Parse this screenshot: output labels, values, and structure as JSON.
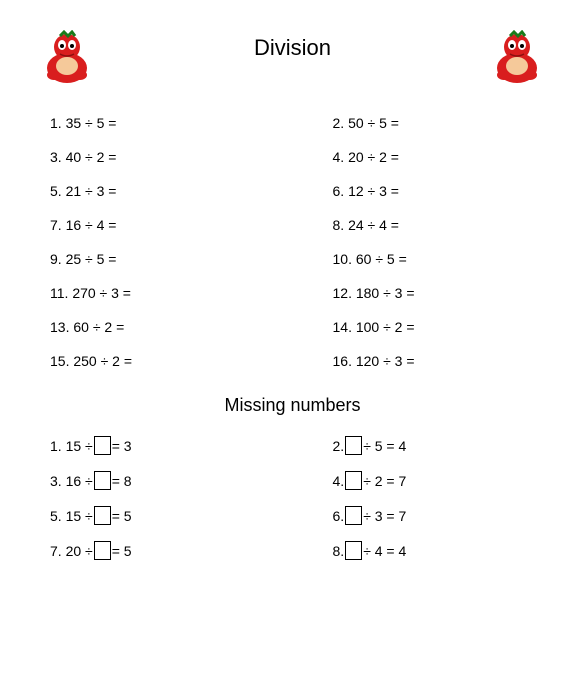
{
  "title": "Division",
  "subtitle": "Missing numbers",
  "division_sign": "÷",
  "equals": "=",
  "colors": {
    "background": "#ffffff",
    "text": "#000000",
    "mascot_body": "#d91e1e",
    "mascot_dark": "#8b1010",
    "mascot_accent": "#1a7a1a"
  },
  "typography": {
    "title_fontsize": 22,
    "subtitle_fontsize": 18,
    "body_fontsize": 14,
    "font_family": "Arial"
  },
  "problems": [
    {
      "n": "1",
      "a": "35",
      "b": "5"
    },
    {
      "n": "2",
      "a": "50",
      "b": "5"
    },
    {
      "n": "3",
      "a": "40",
      "b": "2"
    },
    {
      "n": "4",
      "a": "20",
      "b": "2"
    },
    {
      "n": "5",
      "a": "21",
      "b": "3"
    },
    {
      "n": "6",
      "a": "12",
      "b": "3"
    },
    {
      "n": "7",
      "a": "16",
      "b": "4"
    },
    {
      "n": "8",
      "a": "24",
      "b": "4"
    },
    {
      "n": "9",
      "a": "25",
      "b": "5"
    },
    {
      "n": "10",
      "a": "60",
      "b": "5"
    },
    {
      "n": "11",
      "a": "270",
      "b": "3"
    },
    {
      "n": "12",
      "a": "180",
      "b": "3"
    },
    {
      "n": "13",
      "a": "60",
      "b": "2"
    },
    {
      "n": "14",
      "a": "100",
      "b": "2"
    },
    {
      "n": "15",
      "a": "250",
      "b": "2"
    },
    {
      "n": "16",
      "a": "120",
      "b": " 3"
    }
  ],
  "missing": [
    {
      "n": "1",
      "left": "15 ÷",
      "right": "= 3",
      "box_pos": "mid"
    },
    {
      "n": "2",
      "left": "",
      "right": "÷ 5 = 4",
      "box_pos": "mid"
    },
    {
      "n": "3",
      "left": "16 ÷",
      "right": "= 8",
      "box_pos": "mid"
    },
    {
      "n": "4",
      "left": "",
      "right": "÷ 2 = 7",
      "box_pos": "mid"
    },
    {
      "n": "5",
      "left": "15 ÷",
      "right": "=  5",
      "box_pos": "mid"
    },
    {
      "n": "6",
      "left": "",
      "right": "÷ 3 = 7",
      "box_pos": "mid"
    },
    {
      "n": "7",
      "left": "20 ÷",
      "right": "= 5",
      "box_pos": "mid"
    },
    {
      "n": "8",
      "left": "",
      "right": "÷ 4 = 4",
      "box_pos": "mid"
    }
  ]
}
